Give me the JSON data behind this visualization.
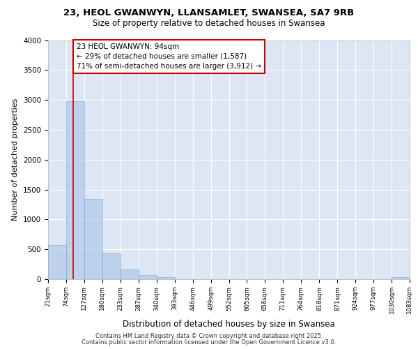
{
  "title_line1": "23, HEOL GWANWYN, LLANSAMLET, SWANSEA, SA7 9RB",
  "title_line2": "Size of property relative to detached houses in Swansea",
  "xlabel": "Distribution of detached houses by size in Swansea",
  "ylabel": "Number of detached properties",
  "bar_values": [
    570,
    2980,
    1340,
    430,
    165,
    75,
    30,
    0,
    0,
    0,
    0,
    0,
    0,
    0,
    0,
    0,
    0,
    0,
    0,
    30
  ],
  "bar_edges": [
    21,
    74,
    127,
    180,
    233,
    287,
    340,
    393,
    446,
    499,
    552,
    605,
    658,
    711,
    764,
    818,
    871,
    924,
    977,
    1030,
    1083
  ],
  "tick_labels": [
    "21sqm",
    "74sqm",
    "127sqm",
    "180sqm",
    "233sqm",
    "287sqm",
    "340sqm",
    "393sqm",
    "446sqm",
    "499sqm",
    "552sqm",
    "605sqm",
    "658sqm",
    "711sqm",
    "764sqm",
    "818sqm",
    "871sqm",
    "924sqm",
    "977sqm",
    "1030sqm",
    "1083sqm"
  ],
  "bar_color": "#aec6e8",
  "bar_edge_color": "#7aadd4",
  "bar_alpha": 0.65,
  "red_line_x": 94,
  "annotation_text": "23 HEOL GWANWYN: 94sqm\n← 29% of detached houses are smaller (1,587)\n71% of semi-detached houses are larger (3,912) →",
  "annotation_box_color": "#ffffff",
  "annotation_border_color": "#cc0000",
  "ylim": [
    0,
    4000
  ],
  "yticks": [
    0,
    500,
    1000,
    1500,
    2000,
    2500,
    3000,
    3500,
    4000
  ],
  "background_color": "#dde6f5",
  "grid_color": "#ffffff",
  "footer_line1": "Contains HM Land Registry data © Crown copyright and database right 2025.",
  "footer_line2": "Contains public sector information licensed under the Open Government Licence v3.0."
}
